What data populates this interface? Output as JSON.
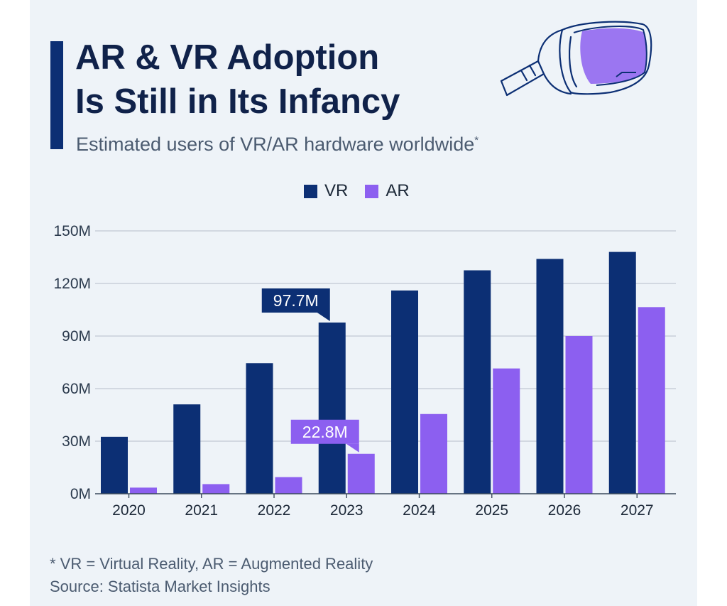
{
  "header": {
    "title_line1": "AR & VR Adoption",
    "title_line2": "Is Still in Its Infancy",
    "subtitle": "Estimated users of VR/AR hardware worldwide",
    "subtitle_mark": "*"
  },
  "icons": {
    "headset": "vr-headset-icon"
  },
  "colors": {
    "vr": "#0c2f74",
    "ar": "#8c5ff0",
    "grid": "#c9d0d9",
    "axis": "#3a4a5c"
  },
  "chart_data": {
    "type": "bar",
    "categories": [
      "2020",
      "2021",
      "2022",
      "2023",
      "2024",
      "2025",
      "2026",
      "2027"
    ],
    "series": [
      {
        "name": "VR",
        "values": [
          32.5,
          51,
          74.5,
          97.7,
          116,
          127.5,
          134,
          138
        ]
      },
      {
        "name": "AR",
        "values": [
          3.5,
          5.5,
          9.5,
          22.8,
          45.5,
          71.5,
          90,
          106.5
        ]
      }
    ],
    "ylim": [
      0,
      150
    ],
    "yticks": [
      0,
      30,
      60,
      90,
      120,
      150
    ],
    "ytick_labels": [
      "0M",
      "30M",
      "60M",
      "90M",
      "120M",
      "150M"
    ],
    "grid": true,
    "legend": "top-center",
    "annotations": [
      {
        "series": "VR",
        "category": "2023",
        "text": "97.7M"
      },
      {
        "series": "AR",
        "category": "2023",
        "text": "22.8M"
      }
    ]
  },
  "footer": {
    "note": "* VR = Virtual Reality, AR = Augmented Reality",
    "source": "Source: Statista Market Insights"
  }
}
